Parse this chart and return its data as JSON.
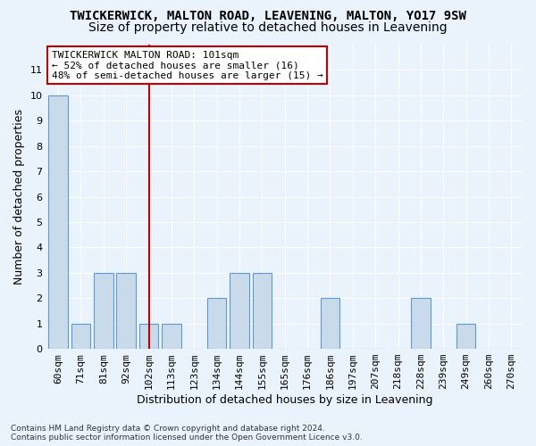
{
  "title": "TWICKERWICK, MALTON ROAD, LEAVENING, MALTON, YO17 9SW",
  "subtitle": "Size of property relative to detached houses in Leavening",
  "xlabel": "Distribution of detached houses by size in Leavening",
  "ylabel": "Number of detached properties",
  "categories": [
    "60sqm",
    "71sqm",
    "81sqm",
    "92sqm",
    "102sqm",
    "113sqm",
    "123sqm",
    "134sqm",
    "144sqm",
    "155sqm",
    "165sqm",
    "176sqm",
    "186sqm",
    "197sqm",
    "207sqm",
    "218sqm",
    "228sqm",
    "239sqm",
    "249sqm",
    "260sqm",
    "270sqm"
  ],
  "values": [
    10,
    1,
    3,
    3,
    1,
    1,
    0,
    2,
    3,
    3,
    0,
    0,
    2,
    0,
    0,
    0,
    2,
    0,
    1,
    0,
    0
  ],
  "bar_color": "#c9daea",
  "bar_edge_color": "#5b9bd5",
  "highlight_index": 4,
  "highlight_color": "#c00000",
  "annotation_text": "TWICKERWICK MALTON ROAD: 101sqm\n← 52% of detached houses are smaller (16)\n48% of semi-detached houses are larger (15) →",
  "annotation_box_color": "#ffffff",
  "annotation_box_edge": "#c00000",
  "ylim": [
    0,
    12
  ],
  "yticks": [
    0,
    1,
    2,
    3,
    4,
    5,
    6,
    7,
    8,
    9,
    10,
    11,
    12
  ],
  "footnote": "Contains HM Land Registry data © Crown copyright and database right 2024.\nContains public sector information licensed under the Open Government Licence v3.0.",
  "background_color": "#eaf2fb",
  "grid_color": "#ffffff",
  "title_fontsize": 10,
  "subtitle_fontsize": 10,
  "tick_fontsize": 8,
  "label_fontsize": 9,
  "annotation_fontsize": 8
}
